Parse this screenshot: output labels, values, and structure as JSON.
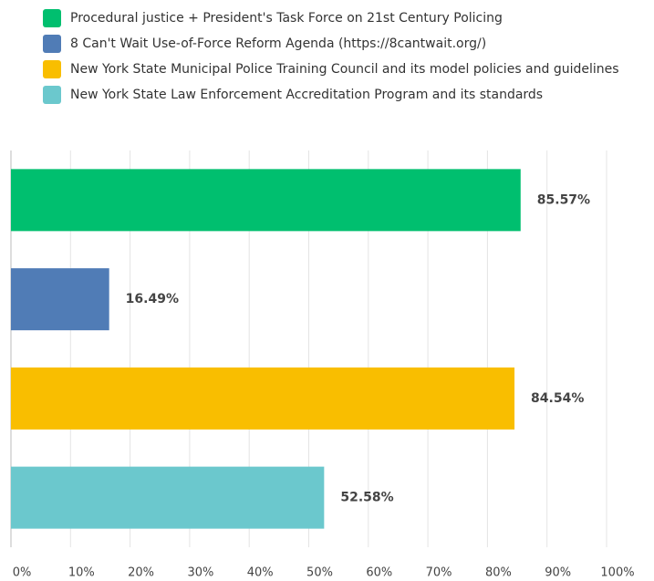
{
  "chart_data": {
    "type": "bar",
    "orientation": "horizontal",
    "series": [
      {
        "name": "Procedural justice + President's Task Force on 21st Century Policing",
        "color": "#00bf6f",
        "values": [
          85.57
        ],
        "value_labels": [
          "85.57%"
        ]
      },
      {
        "name": "8 Can't Wait Use-of-Force Reform Agenda (https://8cantwait.org/)",
        "color": "#507cb6",
        "values": [
          16.49
        ],
        "value_labels": [
          "16.49%"
        ]
      },
      {
        "name": "New York State Municipal Police Training Council and its model policies and guidelines",
        "color": "#f9be00",
        "values": [
          84.54
        ],
        "value_labels": [
          "84.54%"
        ]
      },
      {
        "name": "New York State Law Enforcement Accreditation Program and its standards",
        "color": "#6bc8cd",
        "values": [
          52.58
        ],
        "value_labels": [
          "52.58%"
        ]
      }
    ],
    "xlim": [
      0,
      100
    ],
    "xticks": [
      {
        "value": 0,
        "label": "0%"
      },
      {
        "value": 10,
        "label": "10%"
      },
      {
        "value": 20,
        "label": "20%"
      },
      {
        "value": 30,
        "label": "30%"
      },
      {
        "value": 40,
        "label": "40%"
      },
      {
        "value": 50,
        "label": "50%"
      },
      {
        "value": 60,
        "label": "60%"
      },
      {
        "value": 70,
        "label": "70%"
      },
      {
        "value": 80,
        "label": "80%"
      },
      {
        "value": 90,
        "label": "90%"
      },
      {
        "value": 100,
        "label": "100%"
      }
    ],
    "grid": true,
    "legend": "top"
  }
}
